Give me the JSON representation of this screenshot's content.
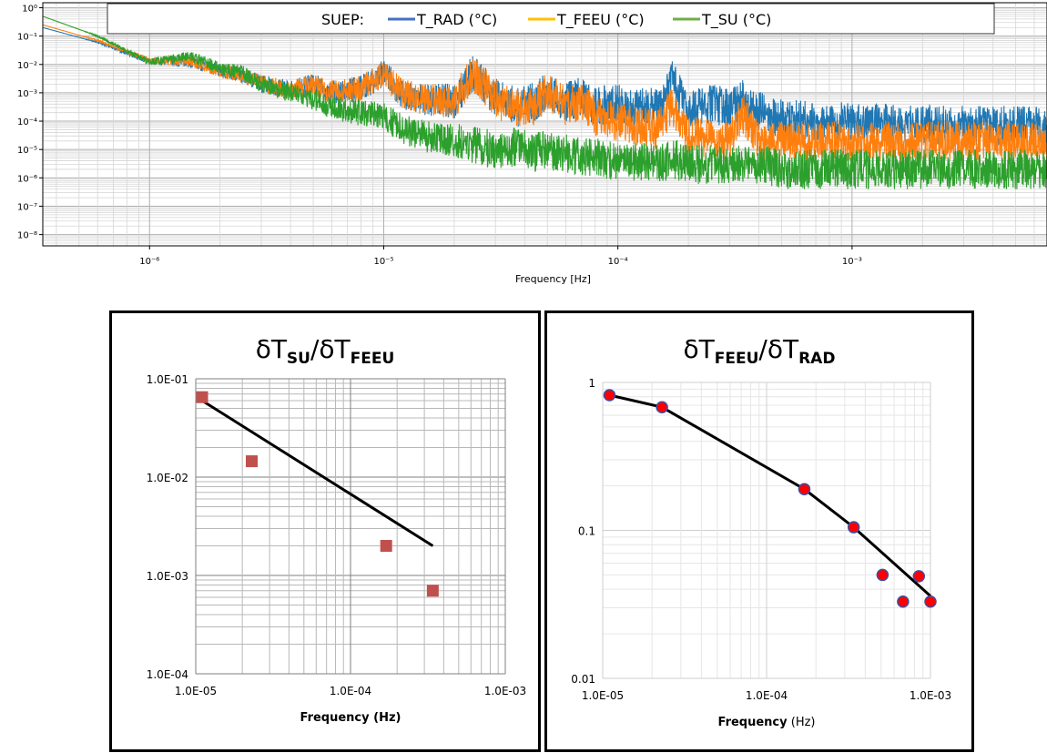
{
  "chart_data": [
    {
      "type": "line",
      "title": "",
      "xlabel": "Frequency [Hz]",
      "ylabel": "",
      "x_scale": "log",
      "y_scale": "log",
      "xlim": [
        3.5e-07,
        0.0068
      ],
      "ylim": [
        4e-09,
        1.5
      ],
      "x_tick_labels": [
        "10⁻⁶",
        "10⁻⁵",
        "10⁻⁴",
        "10⁻³"
      ],
      "x_tick_values": [
        1e-06,
        1e-05,
        0.0001,
        0.001
      ],
      "y_tick_labels": [
        "10⁰",
        "10⁻¹",
        "10⁻²",
        "10⁻³",
        "10⁻⁴",
        "10⁻⁵",
        "10⁻⁶",
        "10⁻⁷",
        "10⁻⁸"
      ],
      "y_tick_values": [
        1,
        0.1,
        0.01,
        0.001,
        0.0001,
        1e-05,
        1e-06,
        1e-07,
        1e-08
      ],
      "grid": true,
      "legend": {
        "title": "SUEP:",
        "position": "top-center",
        "entries": [
          {
            "label": "T_RAD (°C)",
            "color": "#4472c4"
          },
          {
            "label": "T_FEEU (°C)",
            "color": "#ffc000"
          },
          {
            "label": "T_SU (°C)",
            "color": "#70ad47"
          }
        ]
      },
      "series": [
        {
          "name": "T_RAD (°C)",
          "color": "#1f77b4",
          "x": [
            3.5e-07,
            6e-07,
            1e-06,
            1.5e-06,
            2e-06,
            2.5e-06,
            3e-06,
            4e-06,
            5e-06,
            6e-06,
            8e-06,
            1e-05,
            1.2e-05,
            1.5e-05,
            2e-05,
            2.4e-05,
            3e-05,
            3.7e-05,
            4.5e-05,
            5e-05,
            6e-05,
            7e-05,
            8e-05,
            0.0001,
            0.00012,
            0.00015,
            0.00017,
            0.0002,
            0.00025,
            0.0003,
            0.00034,
            0.0004,
            0.0005,
            0.0007,
            0.001,
            0.0015,
            0.002,
            0.003,
            0.004,
            0.005,
            0.0068
          ],
          "y": [
            0.2,
            0.06,
            0.013,
            0.012,
            0.006,
            0.004,
            0.0022,
            0.0012,
            0.002,
            0.001,
            0.0014,
            0.005,
            0.0009,
            0.0006,
            0.0005,
            0.005,
            0.0007,
            0.0003,
            0.0005,
            0.0013,
            0.00045,
            0.0008,
            0.00035,
            0.0004,
            0.0003,
            0.0003,
            0.003,
            0.00025,
            0.0004,
            0.0003,
            0.0006,
            0.00025,
            0.00012,
            0.0001,
            0.0001,
            8e-05,
            8e-05,
            7e-05,
            7e-05,
            7e-05,
            7e-05
          ]
        },
        {
          "name": "T_FEEU (°C)",
          "color": "#ff7f0e",
          "x": [
            3.5e-07,
            6e-07,
            1e-06,
            1.5e-06,
            2e-06,
            2.5e-06,
            3e-06,
            4e-06,
            5e-06,
            6e-06,
            8e-06,
            1e-05,
            1.2e-05,
            1.5e-05,
            2e-05,
            2.4e-05,
            3e-05,
            3.7e-05,
            4.5e-05,
            5e-05,
            6e-05,
            7e-05,
            8e-05,
            0.0001,
            0.00012,
            0.00015,
            0.00017,
            0.0002,
            0.00025,
            0.0003,
            0.00034,
            0.0004,
            0.0005,
            0.0007,
            0.001,
            0.0015,
            0.002,
            0.003,
            0.004,
            0.005,
            0.0068
          ],
          "y": [
            0.25,
            0.07,
            0.014,
            0.013,
            0.006,
            0.004,
            0.0022,
            0.0012,
            0.002,
            0.001,
            0.0014,
            0.005,
            0.0009,
            0.0006,
            0.0005,
            0.005,
            0.0006,
            0.0003,
            0.0004,
            0.0012,
            0.00035,
            0.0005,
            0.00015,
            0.0001,
            7e-05,
            5e-05,
            0.0004,
            3e-05,
            2.5e-05,
            2e-05,
            0.0002,
            2e-05,
            2e-05,
            2e-05,
            2e-05,
            2e-05,
            2e-05,
            2e-05,
            2e-05,
            2e-05,
            2e-05
          ]
        },
        {
          "name": "T_SU (°C)",
          "color": "#2ca02c",
          "x": [
            3.5e-07,
            6e-07,
            1e-06,
            1.5e-06,
            2e-06,
            2.5e-06,
            3e-06,
            4e-06,
            5e-06,
            6e-06,
            8e-06,
            1e-05,
            1.2e-05,
            1.5e-05,
            2e-05,
            2.4e-05,
            3e-05,
            3.7e-05,
            4.5e-05,
            5e-05,
            6e-05,
            7e-05,
            8e-05,
            0.0001,
            0.00012,
            0.00015,
            0.00017,
            0.0002,
            0.00025,
            0.0003,
            0.00034,
            0.0004,
            0.0005,
            0.0007,
            0.001,
            0.0015,
            0.002,
            0.003,
            0.004,
            0.005,
            0.0068
          ],
          "y": [
            0.5,
            0.1,
            0.012,
            0.02,
            0.007,
            0.005,
            0.002,
            0.001,
            0.0006,
            0.0003,
            0.0002,
            0.00015,
            5e-05,
            3e-05,
            2e-05,
            1.5e-05,
            1e-05,
            1.2e-05,
            8e-06,
            1e-05,
            7e-06,
            6e-06,
            5e-06,
            4e-06,
            4e-06,
            3e-06,
            5e-06,
            3e-06,
            3e-06,
            3e-06,
            3e-06,
            3e-06,
            2e-06,
            2e-06,
            2e-06,
            2e-06,
            2e-06,
            2e-06,
            2e-06,
            2e-06,
            2e-06
          ]
        }
      ]
    },
    {
      "type": "scatter",
      "title_main": "δT",
      "title_sub1": "SU",
      "title_mid": "/δT",
      "title_sub2": "FEEU",
      "xlabel": "Frequency (Hz)",
      "ylabel": "",
      "x_scale": "log",
      "y_scale": "log",
      "xlim": [
        1e-05,
        0.001
      ],
      "ylim": [
        0.0001,
        0.1
      ],
      "x_tick_labels": [
        "1.0E-05",
        "1.0E-04",
        "1.0E-03"
      ],
      "y_tick_labels": [
        "1.0E-01",
        "1.0E-02",
        "1.0E-03",
        "1.0E-04"
      ],
      "grid": true,
      "points": {
        "x": [
          1.1e-05,
          2.3e-05,
          0.00017,
          0.00034
        ],
        "y": [
          0.065,
          0.0145,
          0.002,
          0.0007
        ],
        "color": "#c0504d"
      },
      "fit_line": {
        "x": [
          1.1e-05,
          0.00034
        ],
        "y": [
          0.06,
          0.002
        ]
      }
    },
    {
      "type": "scatter",
      "title_main": "δT",
      "title_sub1": "FEEU",
      "title_mid": "/δT",
      "title_sub2": "RAD",
      "xlabel_bold": "Frequency",
      "xlabel_rest": " (Hz)",
      "ylabel": "",
      "x_scale": "log",
      "y_scale": "log",
      "xlim": [
        1e-05,
        0.001
      ],
      "ylim": [
        0.01,
        1
      ],
      "x_tick_labels": [
        "1.0E-05",
        "1.0E-04",
        "1.0E-03"
      ],
      "y_tick_labels": [
        "1",
        "0.1",
        "0.01"
      ],
      "grid": true,
      "points": {
        "x": [
          1.1e-05,
          2.3e-05,
          0.00017,
          0.00034,
          0.00051,
          0.00068,
          0.00085,
          0.001
        ],
        "y": [
          0.82,
          0.68,
          0.19,
          0.105,
          0.05,
          0.033,
          0.049,
          0.033
        ],
        "color": "#ff0000"
      },
      "fit_line": {
        "x": [
          1.1e-05,
          2.3e-05,
          0.00017,
          0.00034,
          0.001
        ],
        "y": [
          0.82,
          0.68,
          0.19,
          0.105,
          0.036
        ]
      }
    }
  ]
}
